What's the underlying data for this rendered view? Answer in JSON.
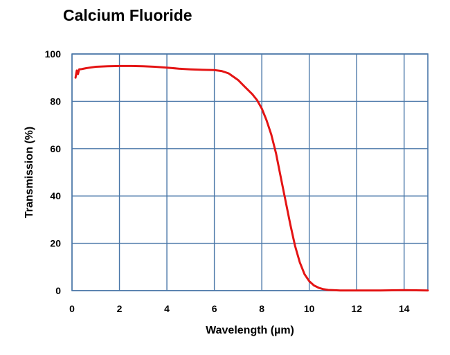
{
  "chart_data": {
    "type": "line",
    "title": "Calcium Fluoride",
    "xlabel": "Wavelength (µm)",
    "ylabel": "Transmission (%)",
    "xlim": [
      0,
      15
    ],
    "ylim": [
      0,
      100
    ],
    "x_ticks": [
      "0",
      "2",
      "4",
      "6",
      "8",
      "10",
      "12",
      "14"
    ],
    "y_ticks": [
      "0",
      "20",
      "40",
      "60",
      "80",
      "100"
    ],
    "grid": true,
    "legend": "none",
    "series": [
      {
        "color": "#e41414",
        "x": [
          0.15,
          0.2,
          0.25,
          0.3,
          0.4,
          0.6,
          1.0,
          1.5,
          2.0,
          2.5,
          3.0,
          3.5,
          4.0,
          4.5,
          5.0,
          5.5,
          6.0,
          6.3,
          6.6,
          7.0,
          7.3,
          7.6,
          7.8,
          8.0,
          8.2,
          8.4,
          8.6,
          8.8,
          9.0,
          9.2,
          9.4,
          9.6,
          9.8,
          10.0,
          10.2,
          10.4,
          10.6,
          10.8,
          11.0,
          11.3,
          11.6,
          12.0,
          13.0,
          14.0,
          15.0
        ],
        "y": [
          90,
          93,
          91.5,
          93.5,
          93.6,
          94,
          94.6,
          94.8,
          94.9,
          94.9,
          94.8,
          94.6,
          94.2,
          93.8,
          93.5,
          93.3,
          93.2,
          92.8,
          91.8,
          89,
          86,
          83,
          80.5,
          77,
          72,
          66,
          58,
          48,
          38,
          28,
          19,
          12,
          7,
          4,
          2.2,
          1.2,
          0.6,
          0.3,
          0.2,
          0.1,
          0.1,
          0.1,
          0.1,
          0.2,
          0.1
        ]
      }
    ]
  }
}
